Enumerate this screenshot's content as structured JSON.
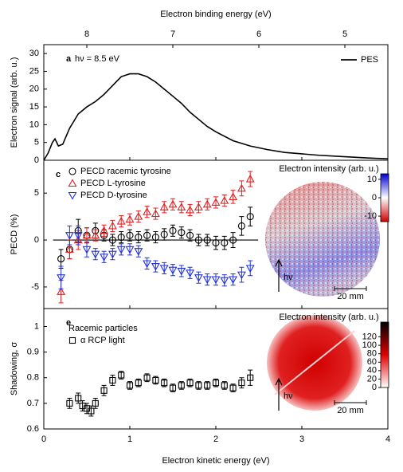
{
  "chart_data": [
    {
      "type": "line",
      "x2label": "Electron binding energy (eV)",
      "x2lim": [
        8.5,
        4.5
      ],
      "x2ticks": [
        8,
        7,
        6,
        5
      ],
      "ylabel": "Electron signal (arb. u.)",
      "panel_label": "a",
      "annotation": "hν = 8.5 eV",
      "legend": "upper right",
      "xlim": [
        0,
        4
      ],
      "xticks": [
        0,
        1,
        2,
        3,
        4
      ],
      "ylim": [
        0,
        32.5
      ],
      "yticks": [
        0,
        5,
        10,
        15,
        20,
        25,
        30
      ],
      "series": [
        {
          "name": "PES",
          "color": "#000000",
          "x": [
            0,
            0.05,
            0.1,
            0.13,
            0.17,
            0.22,
            0.3,
            0.4,
            0.5,
            0.6,
            0.7,
            0.8,
            0.9,
            1.0,
            1.1,
            1.2,
            1.3,
            1.4,
            1.5,
            1.6,
            1.7,
            1.8,
            1.9,
            2.0,
            2.2,
            2.4,
            2.6,
            2.8,
            3.0,
            3.2,
            3.5,
            3.8,
            4.0
          ],
          "values": [
            0,
            2,
            5,
            6,
            4,
            4.5,
            9,
            13,
            15,
            16.5,
            18.5,
            21,
            23.5,
            24.3,
            24.3,
            23.5,
            22,
            20,
            18,
            16,
            13.5,
            11.5,
            9.5,
            8,
            5.5,
            4,
            3,
            2.2,
            1.8,
            1.4,
            1,
            0.6,
            0.4
          ]
        }
      ]
    },
    {
      "type": "scatter",
      "ylabel": "PECD (%)",
      "panel_label": "c",
      "zero_line": true,
      "xlim": [
        0,
        4
      ],
      "xticks": [
        0,
        1,
        2,
        3,
        4
      ],
      "ylim": [
        -7.3,
        8.5
      ],
      "yticks": [
        -5,
        0,
        5
      ],
      "series": [
        {
          "name": "PECD racemic tyrosine",
          "color": "#000000",
          "marker": "circle",
          "x": [
            0.2,
            0.3,
            0.4,
            0.5,
            0.6,
            0.7,
            0.8,
            0.9,
            1.0,
            1.1,
            1.2,
            1.3,
            1.4,
            1.5,
            1.6,
            1.7,
            1.8,
            1.9,
            2.0,
            2.1,
            2.2,
            2.3,
            2.4
          ],
          "values": [
            -2,
            -1,
            1,
            0.5,
            1,
            0.5,
            0,
            0.3,
            0.5,
            0.3,
            0.5,
            0.3,
            0.6,
            1,
            0.8,
            0.5,
            0,
            0,
            -0.3,
            -0.3,
            0,
            1.5,
            2.5
          ],
          "errors": [
            1,
            1,
            1.2,
            0.8,
            0.8,
            0.6,
            0.6,
            0.6,
            0.6,
            0.6,
            0.6,
            0.6,
            0.6,
            0.6,
            0.6,
            0.6,
            0.6,
            0.6,
            0.7,
            0.7,
            0.8,
            1,
            1
          ]
        },
        {
          "name": "PECD L-tyrosine",
          "color": "#e02020",
          "marker": "triangle-up",
          "x": [
            0.2,
            0.3,
            0.4,
            0.5,
            0.6,
            0.7,
            0.8,
            0.9,
            1.0,
            1.1,
            1.2,
            1.3,
            1.4,
            1.5,
            1.6,
            1.7,
            1.8,
            1.9,
            2.0,
            2.1,
            2.2,
            2.3,
            2.4
          ],
          "values": [
            -5.5,
            -1,
            0,
            0.5,
            0.5,
            1,
            1.5,
            2,
            2.2,
            2.5,
            3,
            2.8,
            3.5,
            3.8,
            3.5,
            3.2,
            3.5,
            3.8,
            4,
            4.2,
            4.6,
            5.5,
            6.5
          ],
          "errors": [
            1.2,
            1,
            1,
            0.8,
            0.6,
            0.6,
            0.6,
            0.6,
            0.6,
            0.6,
            0.6,
            0.6,
            0.6,
            0.6,
            0.6,
            0.6,
            0.6,
            0.6,
            0.6,
            0.6,
            0.7,
            0.8,
            0.8
          ]
        },
        {
          "name": "PECD D-tyrosine",
          "color": "#2030e0",
          "marker": "triangle-down",
          "x": [
            0.2,
            0.3,
            0.4,
            0.5,
            0.6,
            0.7,
            0.8,
            0.9,
            1.0,
            1.1,
            1.2,
            1.3,
            1.4,
            1.5,
            1.6,
            1.7,
            1.8,
            1.9,
            2.0,
            2.1,
            2.2,
            2.3,
            2.4
          ],
          "values": [
            -4,
            0.5,
            0.5,
            -1,
            -1.5,
            -1.8,
            -1.5,
            -1,
            -1,
            -1.2,
            -2.5,
            -2.8,
            -3,
            -3.2,
            -3.3,
            -3.5,
            -4,
            -4.2,
            -4.2,
            -4.3,
            -4.2,
            -3.7,
            -3
          ],
          "errors": [
            1.2,
            1,
            1,
            0.8,
            0.6,
            0.6,
            0.6,
            0.6,
            0.6,
            0.6,
            0.6,
            0.6,
            0.6,
            0.6,
            0.6,
            0.6,
            0.6,
            0.6,
            0.6,
            0.6,
            0.6,
            0.8,
            0.8
          ]
        }
      ],
      "inset": {
        "title": "Electron intensity (arb. u.)",
        "colorbar_lim": [
          -13,
          13
        ],
        "colorbar_ticks": [
          -10,
          0,
          10
        ],
        "colors": [
          "#d00000",
          "#ffffff",
          "#0000d0"
        ],
        "photon_label": "hν",
        "scale_label": "20 mm"
      }
    },
    {
      "type": "scatter",
      "ylabel": "Shadowing, σ",
      "panel_label": "e",
      "legend_title": "Racemic particles",
      "xlabel": "Electron kinetic energy (eV)",
      "xlim": [
        0,
        4
      ],
      "xticks": [
        0,
        1,
        2,
        3,
        4
      ],
      "ylim": [
        0.6,
        1.07
      ],
      "yticks": [
        0.6,
        0.7,
        0.8,
        0.9,
        1.0
      ],
      "series": [
        {
          "name": "α RCP light",
          "color": "#000000",
          "marker": "square",
          "x": [
            0.3,
            0.4,
            0.45,
            0.5,
            0.55,
            0.6,
            0.7,
            0.8,
            0.9,
            1.0,
            1.1,
            1.2,
            1.3,
            1.4,
            1.5,
            1.6,
            1.7,
            1.8,
            1.9,
            2.0,
            2.1,
            2.2,
            2.3,
            2.4
          ],
          "values": [
            0.7,
            0.72,
            0.69,
            0.68,
            0.67,
            0.7,
            0.75,
            0.79,
            0.81,
            0.77,
            0.78,
            0.8,
            0.79,
            0.78,
            0.76,
            0.77,
            0.78,
            0.77,
            0.77,
            0.78,
            0.77,
            0.76,
            0.78,
            0.8
          ],
          "errors": [
            0.02,
            0.02,
            0.02,
            0.02,
            0.02,
            0.02,
            0.02,
            0.02,
            0.015,
            0.015,
            0.015,
            0.015,
            0.015,
            0.015,
            0.015,
            0.015,
            0.015,
            0.015,
            0.015,
            0.015,
            0.015,
            0.015,
            0.02,
            0.03
          ]
        }
      ],
      "inset": {
        "title": "Electron intensity (arb. u.)",
        "colorbar_lim": [
          0,
          155
        ],
        "colorbar_ticks": [
          0,
          20,
          40,
          60,
          80,
          100,
          120
        ],
        "colors": [
          "#ffffff",
          "#e00000",
          "#000000"
        ],
        "photon_label": "hν",
        "scale_label": "20 mm"
      }
    }
  ]
}
